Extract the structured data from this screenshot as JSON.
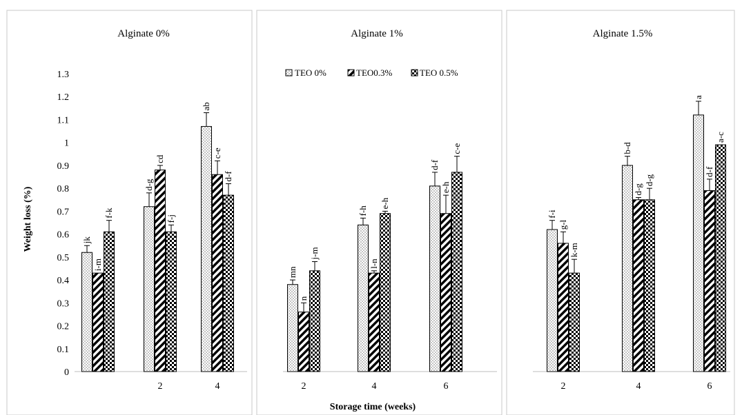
{
  "chart_data": {
    "type": "bar",
    "ylabel": "Weight loss (%)",
    "xlabel": "Storage time (weeks)",
    "ylim": [
      0,
      1.3
    ],
    "yticks": [
      "0",
      "0.1",
      "0.2",
      "0.3",
      "0.4",
      "0.5",
      "0.6",
      "0.7",
      "0.8",
      "0.9",
      "1",
      "1.1",
      "1.2",
      "1.3"
    ],
    "legend": {
      "placement": "top-center",
      "entries": [
        "TEO 0%",
        "TEO0.3%",
        "TEO 0.5%"
      ]
    },
    "series_names": [
      "TEO 0%",
      "TEO0.3%",
      "TEO 0.5%"
    ],
    "panels": [
      {
        "title": "Alginate 0%",
        "categories": [
          "",
          "2",
          "4"
        ],
        "series": [
          {
            "values": [
              0.52,
              0.72,
              1.07
            ],
            "errors": [
              0.03,
              0.06,
              0.06
            ],
            "labels": [
              "jk",
              "d-g",
              "ab"
            ]
          },
          {
            "values": [
              0.43,
              0.88,
              0.86
            ],
            "errors": [
              0.0,
              0.02,
              0.06
            ],
            "labels": [
              "i-m",
              "cd",
              "c-e"
            ]
          },
          {
            "values": [
              0.61,
              0.61,
              0.77
            ],
            "errors": [
              0.05,
              0.03,
              0.05
            ],
            "labels": [
              "f-k",
              "f-j",
              "d-f"
            ]
          }
        ]
      },
      {
        "title": "Alginate 1%",
        "categories": [
          "2",
          "4",
          "6"
        ],
        "series": [
          {
            "values": [
              0.38,
              0.64,
              0.81
            ],
            "errors": [
              0.02,
              0.03,
              0.06
            ],
            "labels": [
              "mn",
              "f-h",
              "d-f"
            ]
          },
          {
            "values": [
              0.26,
              0.43,
              0.69
            ],
            "errors": [
              0.04,
              0.01,
              0.08
            ],
            "labels": [
              "n",
              "l-n",
              "e-h"
            ]
          },
          {
            "values": [
              0.44,
              0.69,
              0.87
            ],
            "errors": [
              0.04,
              0.01,
              0.07
            ],
            "labels": [
              "j-m",
              "e-h",
              "c-e"
            ]
          }
        ]
      },
      {
        "title": "Alginate 1.5%",
        "categories": [
          "2",
          "4",
          "6"
        ],
        "series": [
          {
            "values": [
              0.62,
              0.9,
              1.12
            ],
            "errors": [
              0.04,
              0.04,
              0.06
            ],
            "labels": [
              "f-i",
              "b-d",
              "a"
            ]
          },
          {
            "values": [
              0.56,
              0.75,
              0.79
            ],
            "errors": [
              0.05,
              0.01,
              0.05
            ],
            "labels": [
              "g-l",
              "d-g",
              "d-f"
            ]
          },
          {
            "values": [
              0.43,
              0.75,
              0.99
            ],
            "errors": [
              0.06,
              0.05,
              0.0
            ],
            "labels": [
              "k-m",
              "d-g",
              "a-c"
            ]
          }
        ]
      }
    ]
  }
}
